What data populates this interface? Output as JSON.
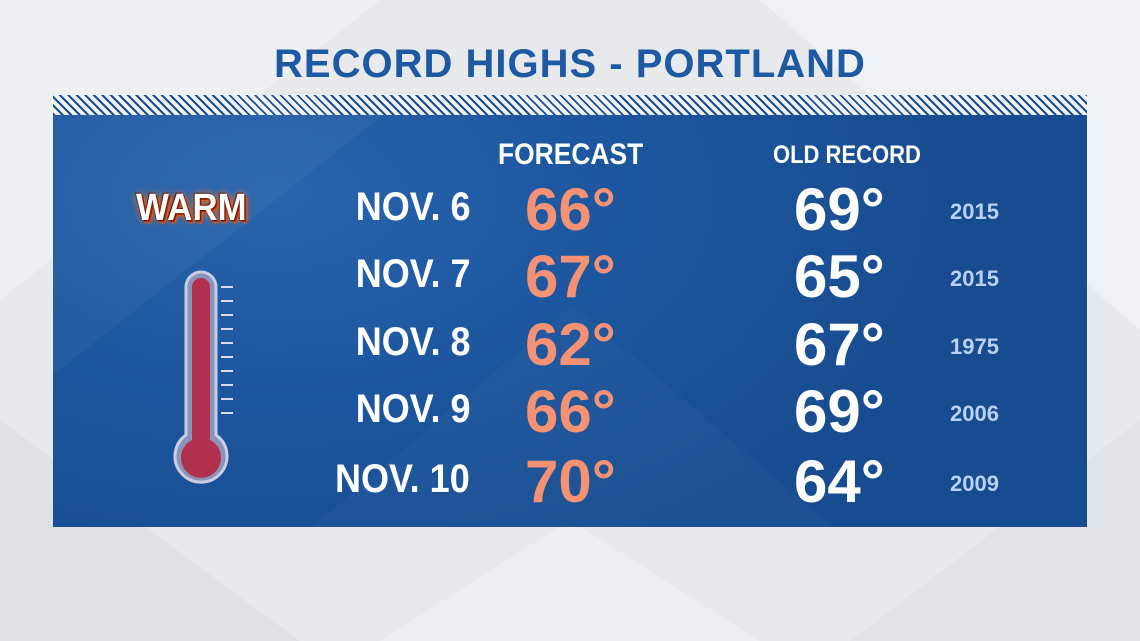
{
  "title": "RECORD HIGHS - PORTLAND",
  "headers": {
    "forecast": "FORECAST",
    "old_record": "OLD RECORD"
  },
  "badge": {
    "label": "WARM",
    "icon": "thermometer-icon"
  },
  "rows": [
    {
      "date": "NOV. 6",
      "forecast": "66°",
      "old_record": "69°",
      "year": "2015"
    },
    {
      "date": "NOV. 7",
      "forecast": "67°",
      "old_record": "65°",
      "year": "2015"
    },
    {
      "date": "NOV. 8",
      "forecast": "62°",
      "old_record": "67°",
      "year": "1975"
    },
    {
      "date": "NOV. 9",
      "forecast": "66°",
      "old_record": "69°",
      "year": "2006"
    },
    {
      "date": "NOV. 10",
      "forecast": "70°",
      "old_record": "64°",
      "year": "2009"
    }
  ],
  "colors": {
    "title": "#1d5aa3",
    "panel": "#1d57a0",
    "forecast_value": "#f59274",
    "old_record_value": "#ffffff",
    "year": "#b9d1f2",
    "thermometer_fill": "#b0304e"
  }
}
